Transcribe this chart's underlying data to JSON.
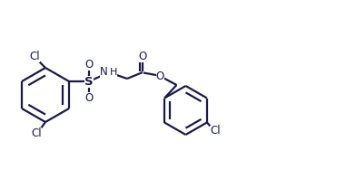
{
  "bg_color": "#ffffff",
  "line_color": "#1a1a4a",
  "line_width": 1.6,
  "font_size": 8.5,
  "figsize": [
    3.92,
    1.98
  ],
  "dpi": 100,
  "xlim": [
    0,
    3.92
  ],
  "ylim": [
    0,
    1.98
  ]
}
